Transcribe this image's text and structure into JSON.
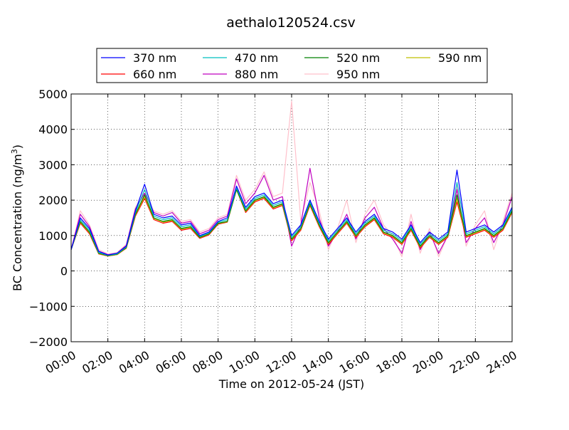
{
  "chart_data": {
    "type": "line",
    "title": "aethalo120524.csv",
    "xlabel": "Time on 2012-05-24 (JST)",
    "ylabel_main": "BC Concentration (ng/m",
    "ylabel_sup": "3",
    "ylabel_end": ")",
    "xlim": [
      "00:00",
      "24:00"
    ],
    "ylim": [
      -2000,
      5000
    ],
    "grid": true,
    "legend_position": "top",
    "x_ticks": [
      "00:00",
      "02:00",
      "04:00",
      "06:00",
      "08:00",
      "10:00",
      "12:00",
      "14:00",
      "16:00",
      "18:00",
      "20:00",
      "22:00",
      "24:00"
    ],
    "y_ticks": [
      -2000,
      -1000,
      0,
      1000,
      2000,
      3000,
      4000,
      5000
    ],
    "y_tick_labels": [
      "−2000",
      "−1000",
      "0",
      "1000",
      "2000",
      "3000",
      "4000",
      "5000"
    ],
    "x_hours": [
      0,
      0.5,
      1,
      1.5,
      2,
      2.5,
      3,
      3.5,
      4,
      4.5,
      5,
      5.5,
      6,
      6.5,
      7,
      7.5,
      8,
      8.5,
      9,
      9.5,
      10,
      10.5,
      11,
      11.5,
      12,
      12.5,
      13,
      13.5,
      14,
      14.5,
      15,
      15.5,
      16,
      16.5,
      17,
      17.5,
      18,
      18.5,
      19,
      19.5,
      20,
      20.5,
      21,
      21.5,
      22,
      22.5,
      23,
      23.5,
      24
    ],
    "series": [
      {
        "name": "370 nm",
        "color": "#0000ff",
        "values": [
          600,
          1500,
          1200,
          550,
          450,
          500,
          700,
          1700,
          2450,
          1600,
          1500,
          1550,
          1300,
          1350,
          1000,
          1100,
          1400,
          1500,
          2400,
          1800,
          2100,
          2200,
          1900,
          2000,
          1000,
          1300,
          2000,
          1400,
          900,
          1200,
          1500,
          1100,
          1400,
          1600,
          1200,
          1100,
          900,
          1300,
          800,
          1100,
          900,
          1100,
          2850,
          1100,
          1200,
          1300,
          1100,
          1300,
          1800
        ]
      },
      {
        "name": "470 nm",
        "color": "#00bfbf",
        "values": [
          600,
          1450,
          1150,
          520,
          440,
          480,
          680,
          1650,
          2300,
          1550,
          1450,
          1500,
          1250,
          1300,
          980,
          1080,
          1380,
          1450,
          2350,
          1750,
          2050,
          2150,
          1850,
          1950,
          950,
          1250,
          1950,
          1350,
          850,
          1150,
          1450,
          1050,
          1350,
          1550,
          1150,
          1050,
          850,
          1250,
          750,
          1050,
          850,
          1050,
          2500,
          1050,
          1150,
          1250,
          1050,
          1250,
          1750
        ]
      },
      {
        "name": "520 nm",
        "color": "#008000",
        "values": [
          600,
          1400,
          1100,
          500,
          430,
          470,
          660,
          1600,
          2150,
          1500,
          1400,
          1450,
          1200,
          1250,
          950,
          1050,
          1350,
          1400,
          2300,
          1700,
          2000,
          2100,
          1800,
          1900,
          900,
          1200,
          1900,
          1300,
          800,
          1100,
          1400,
          1000,
          1300,
          1500,
          1100,
          1000,
          800,
          1200,
          700,
          1000,
          800,
          1000,
          2150,
          1000,
          1100,
          1200,
          1000,
          1200,
          1700
        ]
      },
      {
        "name": "590 nm",
        "color": "#bfbf00",
        "values": [
          600,
          1380,
          1080,
          490,
          425,
          465,
          650,
          1580,
          2100,
          1480,
          1380,
          1430,
          1180,
          1230,
          940,
          1040,
          1340,
          1390,
          2300,
          1680,
          1980,
          2080,
          1780,
          1880,
          880,
          1180,
          1880,
          1280,
          780,
          1080,
          1380,
          980,
          1280,
          1480,
          1080,
          980,
          780,
          1180,
          680,
          980,
          780,
          980,
          2050,
          980,
          1080,
          1180,
          980,
          1180,
          1680
        ]
      },
      {
        "name": "660 nm",
        "color": "#ff0000",
        "values": [
          600,
          1350,
          1050,
          480,
          420,
          460,
          640,
          1550,
          2050,
          1450,
          1350,
          1400,
          1150,
          1200,
          920,
          1020,
          1320,
          1380,
          2300,
          1650,
          1950,
          2050,
          1750,
          1850,
          850,
          1150,
          1850,
          1250,
          750,
          1050,
          1350,
          950,
          1250,
          1450,
          1050,
          950,
          750,
          1150,
          650,
          950,
          750,
          950,
          1950,
          950,
          1050,
          1150,
          950,
          1150,
          1650
        ]
      },
      {
        "name": "880 nm",
        "color": "#bf00bf",
        "values": [
          600,
          1600,
          1250,
          560,
          460,
          500,
          720,
          1750,
          2200,
          1650,
          1550,
          1650,
          1350,
          1400,
          1050,
          1150,
          1450,
          1550,
          2600,
          1900,
          2200,
          2700,
          2000,
          2100,
          700,
          1300,
          2900,
          1500,
          700,
          1100,
          1600,
          900,
          1500,
          1800,
          1200,
          900,
          500,
          1400,
          600,
          1100,
          500,
          1000,
          2300,
          800,
          1200,
          1500,
          800,
          1300,
          2100
        ]
      },
      {
        "name": "950 nm",
        "color": "#ffc0cb",
        "values": [
          600,
          1700,
          1300,
          600,
          480,
          520,
          750,
          1800,
          2200,
          1700,
          1600,
          1700,
          1400,
          1450,
          1100,
          1200,
          1500,
          1600,
          2700,
          2000,
          2300,
          2800,
          2100,
          2200,
          4800,
          1400,
          2500,
          1700,
          600,
          1200,
          2000,
          800,
          1600,
          2000,
          1300,
          1000,
          400,
          1600,
          500,
          1200,
          400,
          1000,
          2400,
          700,
          1300,
          1700,
          600,
          1400,
          2200
        ]
      }
    ]
  }
}
